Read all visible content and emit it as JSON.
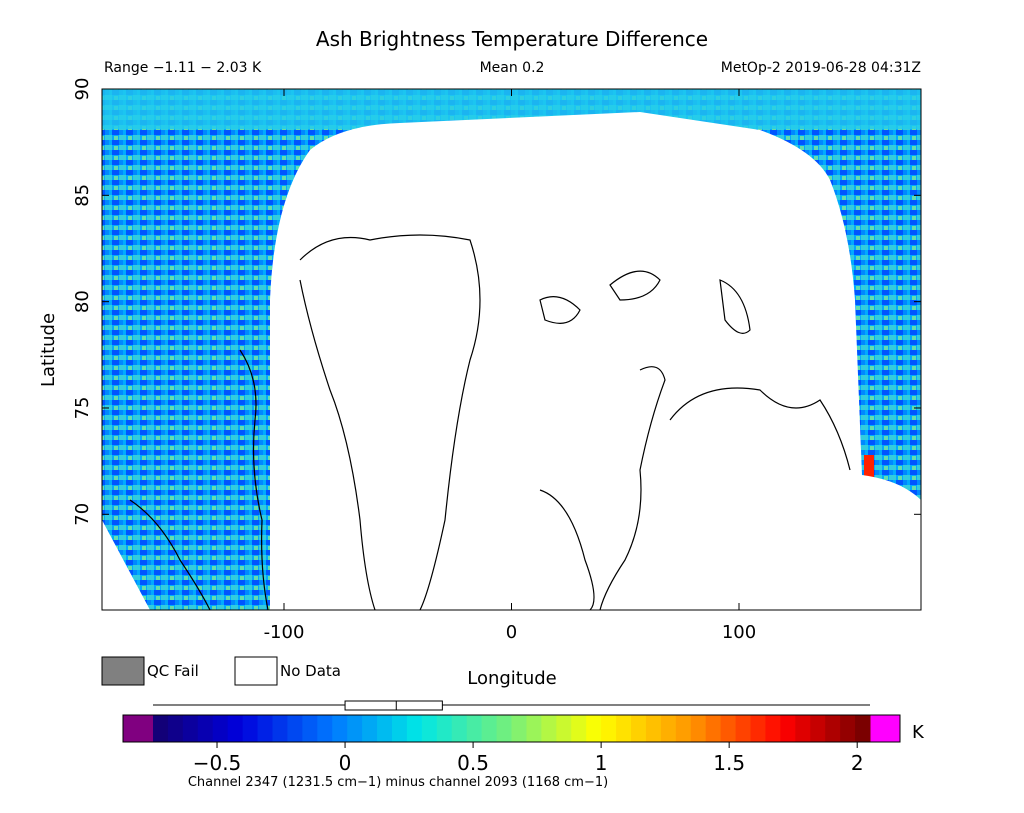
{
  "chart_data": {
    "type": "heatmap",
    "title": "Ash Brightness Temperature Difference",
    "header": {
      "range_text": "Range −1.11 − 2.03 K",
      "mean_text": "Mean 0.2",
      "satellite_time_text": "MetOp-2 2019-06-28 04:31Z"
    },
    "xlabel": "Longitude",
    "ylabel": "Latitude",
    "xlim": [
      -180,
      180
    ],
    "ylim": [
      65.5,
      90
    ],
    "x_ticks": [
      -100,
      0,
      100
    ],
    "y_ticks": [
      70,
      75,
      80,
      85,
      90
    ],
    "range": [
      -1.11,
      2.03
    ],
    "mean": 0.2,
    "units": "K",
    "legend": {
      "qc_fail_label": "QC Fail",
      "qc_fail_color": "#808080",
      "no_data_label": "No Data",
      "no_data_color": "#ffffff"
    },
    "colorbar": {
      "vmin": -0.75,
      "vmax": 2.05,
      "ticks": [
        -0.5,
        0,
        0.5,
        1,
        1.5,
        2
      ],
      "tick_labels": [
        "−0.5",
        "0",
        "0.5",
        "1",
        "1.5",
        "2"
      ],
      "unit_label": "K",
      "under_color": "#800080",
      "over_color": "#ff00ff",
      "caption": "Channel 2347 (1231.5 cm−1) minus channel 2093 (1168 cm−1)"
    },
    "histogram_box": {
      "q1": 0.0,
      "median": 0.2,
      "q3": 0.38,
      "min": -0.75,
      "max": 2.05
    }
  }
}
